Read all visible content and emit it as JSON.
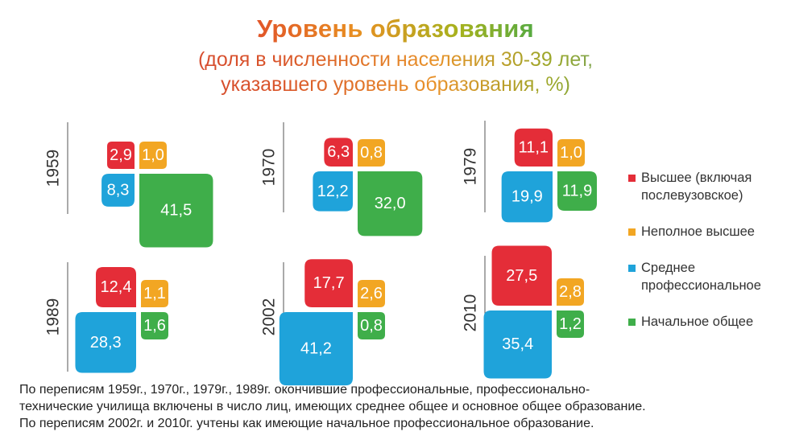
{
  "title": "Уровень образования",
  "subtitle_line1": "(доля в численности населения 30-39 лет,",
  "subtitle_line2": "указавшего уровень образования, %)",
  "colors": {
    "higher": "#e42d38",
    "incomplete_higher": "#f2a623",
    "secondary_professional": "#1fa3da",
    "primary_general": "#3fae4a"
  },
  "chart_data": {
    "type": "proportional-squares",
    "title": "Уровень образования",
    "subtitle": "(доля в численности населения 30-39 лет, указавшего уровень образования, %)",
    "categories": [
      "Высшее (включая послевузовское)",
      "Неполное высшее",
      "Среднее профессиональное",
      "Начальное общее"
    ],
    "years": [
      {
        "year": "1959",
        "values": [
          "2,9",
          "1,0",
          "8,3",
          "41,5"
        ],
        "numeric": [
          2.9,
          1.0,
          8.3,
          41.5
        ]
      },
      {
        "year": "1970",
        "values": [
          "6,3",
          "0,8",
          "12,2",
          "32,0"
        ],
        "numeric": [
          6.3,
          0.8,
          12.2,
          32.0
        ]
      },
      {
        "year": "1979",
        "values": [
          "11,1",
          "1,0",
          "19,9",
          "11,9"
        ],
        "numeric": [
          11.1,
          1.0,
          19.9,
          11.9
        ]
      },
      {
        "year": "1989",
        "values": [
          "12,4",
          "1,1",
          "28,3",
          "1,6"
        ],
        "numeric": [
          12.4,
          1.1,
          28.3,
          1.6
        ]
      },
      {
        "year": "2002",
        "values": [
          "17,7",
          "2,6",
          "41,2",
          "0,8"
        ],
        "numeric": [
          17.7,
          2.6,
          41.2,
          0.8
        ]
      },
      {
        "year": "2010",
        "values": [
          "27,5",
          "2,8",
          "35,4",
          "1,2"
        ],
        "numeric": [
          27.5,
          2.8,
          35.4,
          1.2
        ]
      }
    ],
    "legend_position": "right"
  },
  "legend": {
    "items": [
      {
        "lines": [
          "Высшее (включая",
          "послевузовское)"
        ]
      },
      {
        "lines": [
          "Неполное высшее"
        ]
      },
      {
        "lines": [
          "Среднее",
          "профессиональное"
        ]
      },
      {
        "lines": [
          "Начальное общее"
        ]
      }
    ]
  },
  "footnote": {
    "line1": "По переписям 1959г., 1970г., 1979г., 1989г. окончившие профессиональные, профессионально-",
    "line2": "технические училища  включены в число лиц, имеющих среднее общее и основное общее образование.",
    "line3": "По переписям 2002г. и 2010г. учтены как имеющие начальное профессиональное образование."
  }
}
